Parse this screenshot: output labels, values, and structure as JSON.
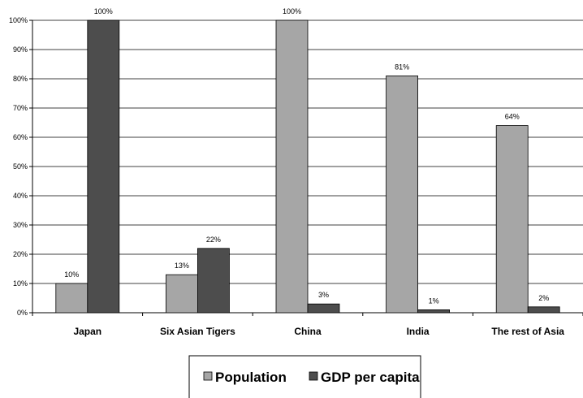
{
  "chart_data": {
    "type": "bar",
    "categories": [
      "Japan",
      "Six Asian Tigers",
      "China",
      "India",
      "The rest of Asia"
    ],
    "series": [
      {
        "name": "Population",
        "values": [
          10,
          13,
          100,
          81,
          64
        ],
        "color": "#a6a6a6",
        "labels": [
          "10%",
          "13%",
          "100%",
          "81%",
          "64%"
        ]
      },
      {
        "name": "GDP per capita",
        "values": [
          100,
          22,
          3,
          1,
          2
        ],
        "color": "#4d4d4d",
        "labels": [
          "100%",
          "22%",
          "3%",
          "1%",
          "2%"
        ]
      }
    ],
    "ylim": [
      0,
      100
    ],
    "yticks": [
      "0%",
      "10%",
      "20%",
      "30%",
      "40%",
      "50%",
      "60%",
      "70%",
      "80%",
      "90%",
      "100%"
    ],
    "grid": true,
    "legend_position": "bottom",
    "title": "",
    "xlabel": "",
    "ylabel": ""
  }
}
